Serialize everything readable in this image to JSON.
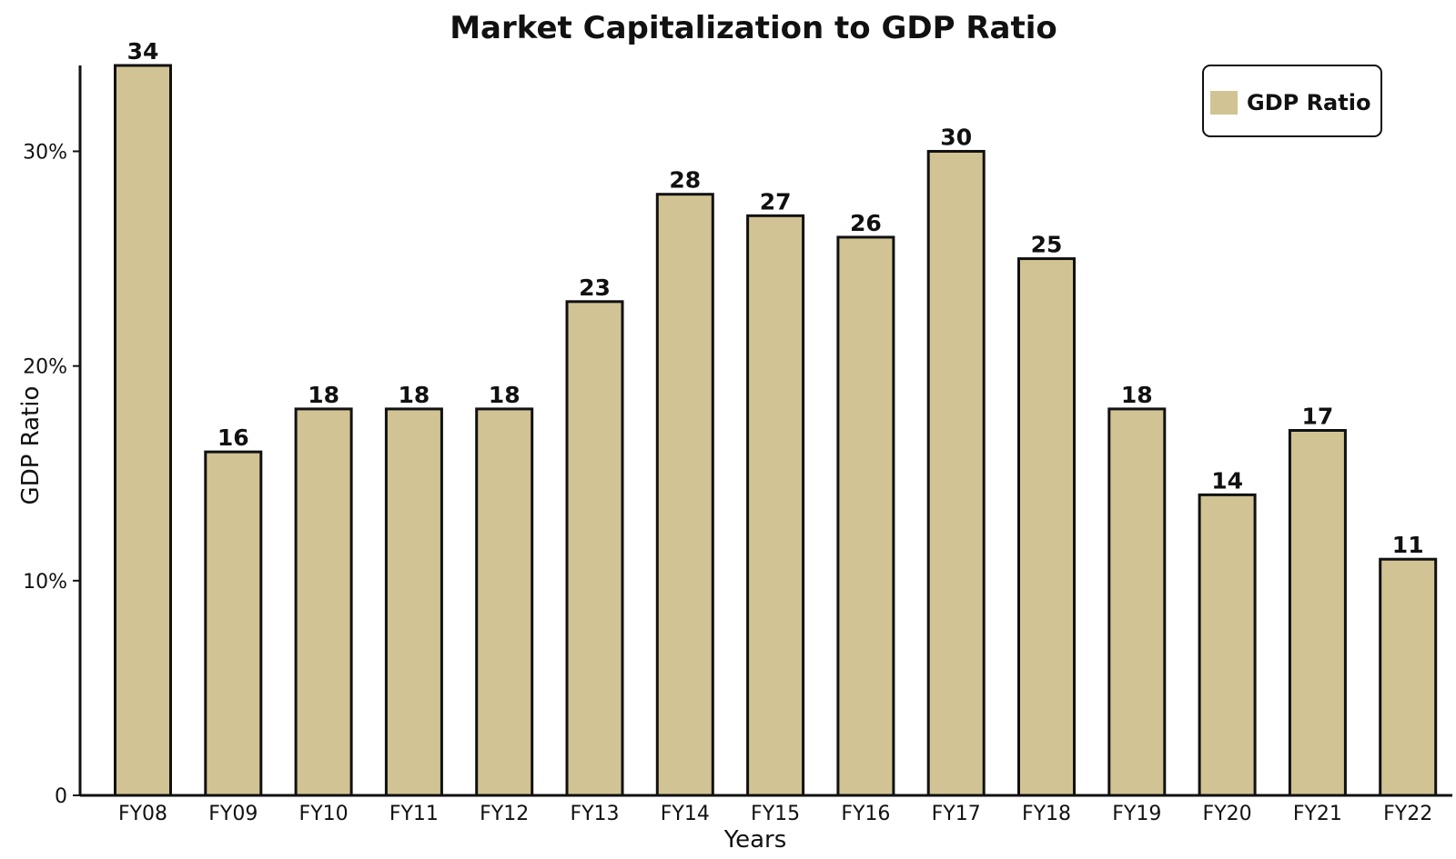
{
  "chart_data": {
    "type": "bar",
    "title": "Market Capitalization to GDP Ratio",
    "xlabel": "Years",
    "ylabel": "GDP Ratio",
    "categories": [
      "FY08",
      "FY09",
      "FY10",
      "FY11",
      "FY12",
      "FY13",
      "FY14",
      "FY15",
      "FY16",
      "FY17",
      "FY18",
      "FY19",
      "FY20",
      "FY21",
      "FY22"
    ],
    "series": [
      {
        "name": "GDP Ratio",
        "values": [
          34,
          16,
          18,
          18,
          18,
          23,
          28,
          27,
          26,
          30,
          25,
          18,
          14,
          17,
          11
        ]
      }
    ],
    "y_ticks": [
      {
        "value": 0,
        "label": "0"
      },
      {
        "value": 10,
        "label": "10%"
      },
      {
        "value": 20,
        "label": "20%"
      },
      {
        "value": 30,
        "label": "30%"
      }
    ],
    "ylim": [
      0,
      34
    ],
    "grid": false,
    "legend_position": "top-right",
    "bar_color": "#D1C393",
    "edge_color": "#111111"
  }
}
